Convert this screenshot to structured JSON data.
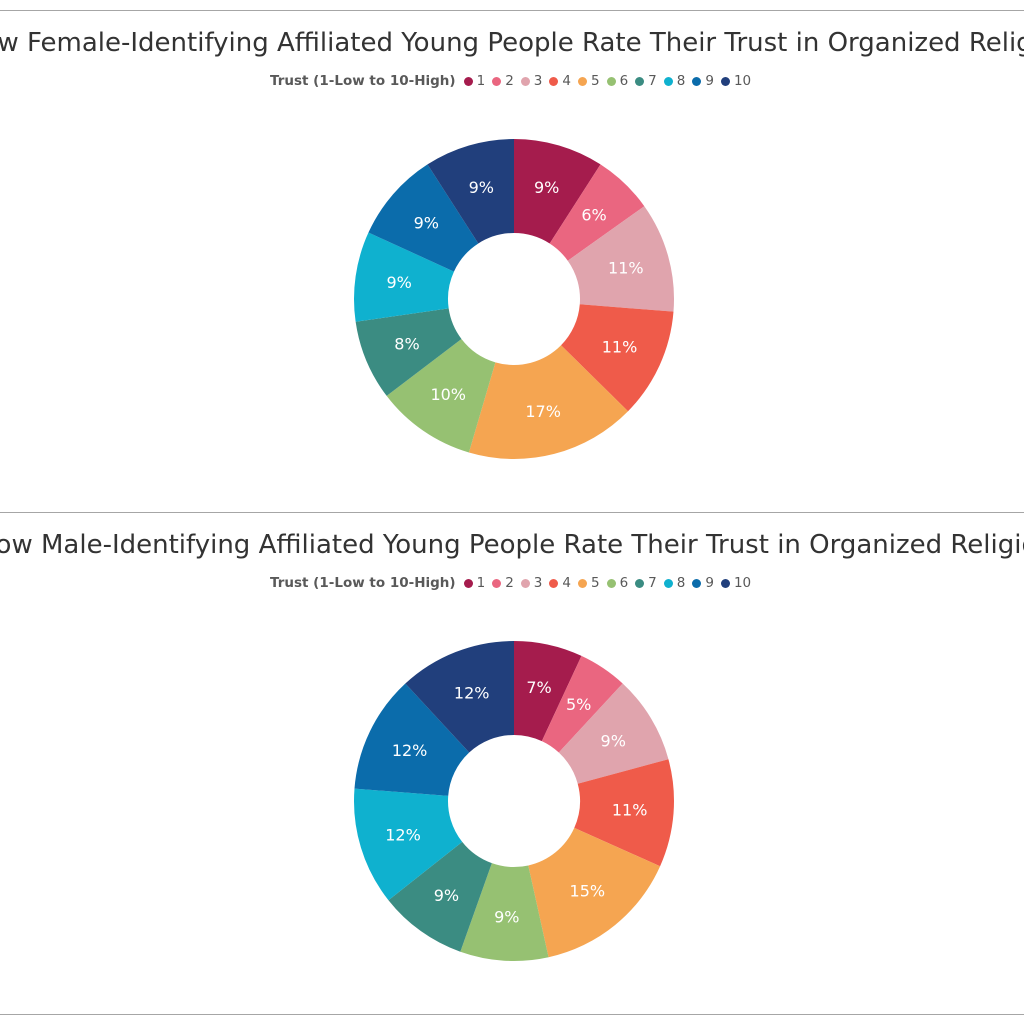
{
  "chart_data": [
    {
      "type": "pie",
      "title": "How Female-Identifying Affiliated Young People Rate Their Trust in Organized Religion",
      "legend_title": "Trust (1-Low to 10-High)",
      "legend_placement": "top",
      "categories": [
        "1",
        "2",
        "3",
        "4",
        "5",
        "6",
        "7",
        "8",
        "9",
        "10"
      ],
      "values": [
        9,
        6,
        11,
        11,
        17,
        10,
        8,
        9,
        9,
        9
      ],
      "labels": [
        "9%",
        "6%",
        "11%",
        "11%",
        "17%",
        "10%",
        "8%",
        "9%",
        "9%",
        "9%"
      ],
      "colors": [
        "#a51c4d",
        "#ea6680",
        "#e0a4ad",
        "#ef5b4a",
        "#f5a551",
        "#96c172",
        "#3b8c82",
        "#0fb1cf",
        "#0b6cab",
        "#213f7c"
      ]
    },
    {
      "type": "pie",
      "title": "How Male-Identifying Affiliated Young People Rate Their Trust in Organized Religion",
      "legend_title": "Trust (1-Low to 10-High)",
      "legend_placement": "top",
      "categories": [
        "1",
        "2",
        "3",
        "4",
        "5",
        "6",
        "7",
        "8",
        "9",
        "10"
      ],
      "values": [
        7,
        5,
        9,
        11,
        15,
        9,
        9,
        12,
        12,
        12
      ],
      "labels": [
        "7%",
        "5%",
        "9%",
        "11%",
        "15%",
        "9%",
        "9%",
        "12%",
        "12%",
        "12%"
      ],
      "colors": [
        "#a51c4d",
        "#ea6680",
        "#e0a4ad",
        "#ef5b4a",
        "#f5a551",
        "#96c172",
        "#3b8c82",
        "#0fb1cf",
        "#0b6cab",
        "#213f7c"
      ]
    }
  ]
}
